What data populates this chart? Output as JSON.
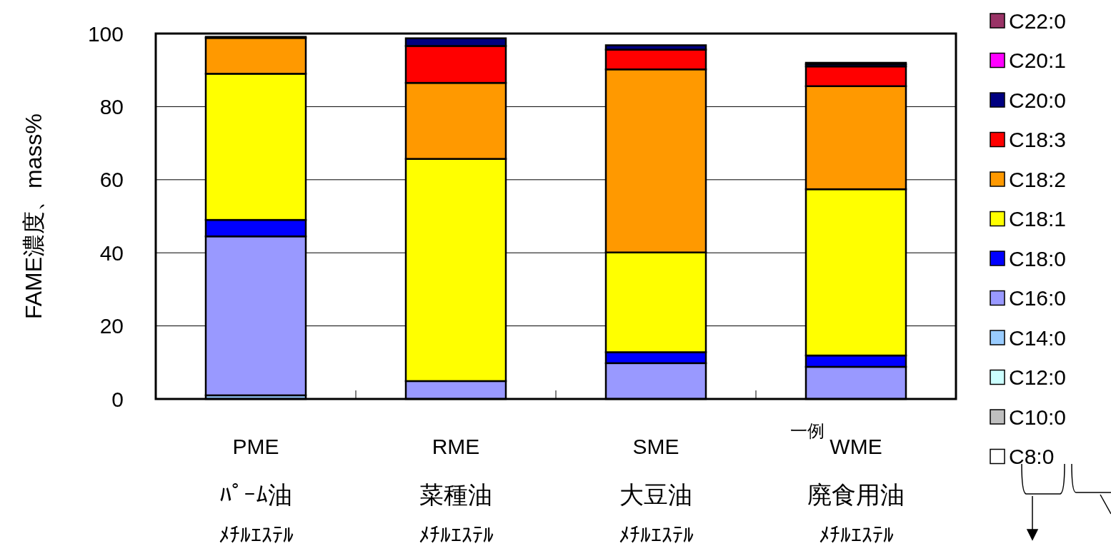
{
  "chart_data": {
    "type": "bar",
    "stacked": true,
    "ylabel": "FAME濃度、mass%",
    "categories": [
      "PMEﾊﾟｰﾑ油ﾒﾁﾙｴｽﾃﾙ",
      "RME菜種油ﾒﾁﾙｴｽﾃﾙ",
      "SME大豆油ﾒﾁﾙｴｽﾃﾙ",
      "WME廃食用油ﾒﾁﾙｴｽﾃﾙ"
    ],
    "ylim": [
      0,
      100
    ],
    "yticks": [
      0,
      20,
      40,
      60,
      80,
      100
    ],
    "grid": "y",
    "legend": "right",
    "annotations": [
      "一例"
    ],
    "series": [
      {
        "name": "C8:0",
        "color": "#ffffff",
        "values": [
          0,
          0,
          0,
          0
        ]
      },
      {
        "name": "C10:0",
        "color": "#bfbfbf",
        "values": [
          0,
          0,
          0,
          0
        ]
      },
      {
        "name": "C12:0",
        "color": "#ccffff",
        "values": [
          null,
          0,
          0,
          0
        ]
      },
      {
        "name": "C14:0",
        "color": "#99ccff",
        "values": [
          1.0,
          0,
          0,
          0
        ]
      },
      {
        "name": "C16:0",
        "color": "#9999ff",
        "values": [
          43.5,
          4.9,
          9.8,
          8.8
        ]
      },
      {
        "name": "C18:0",
        "color": "#0000ff",
        "values": [
          4.5,
          0,
          3.0,
          3.1
        ]
      },
      {
        "name": "C18:1",
        "color": "#ffff00",
        "values": [
          40,
          60.8,
          27.3,
          45.5
        ]
      },
      {
        "name": "C18:2",
        "color": "#ff9900",
        "values": [
          9.8,
          20.8,
          50.1,
          28.2
        ]
      },
      {
        "name": "C18:3",
        "color": "#ff0000",
        "values": [
          null,
          10.1,
          5.4,
          5.4
        ]
      },
      {
        "name": "C20:0",
        "color": "#000080",
        "values": [
          0.3,
          2.1,
          1.2,
          0.6
        ]
      },
      {
        "name": "C20:1",
        "color": "#ff00ff",
        "values": [
          0,
          0,
          0,
          0.4
        ]
      },
      {
        "name": "C22:0",
        "color": "#993366",
        "values": [
          0,
          0,
          0,
          0
        ]
      }
    ]
  }
}
